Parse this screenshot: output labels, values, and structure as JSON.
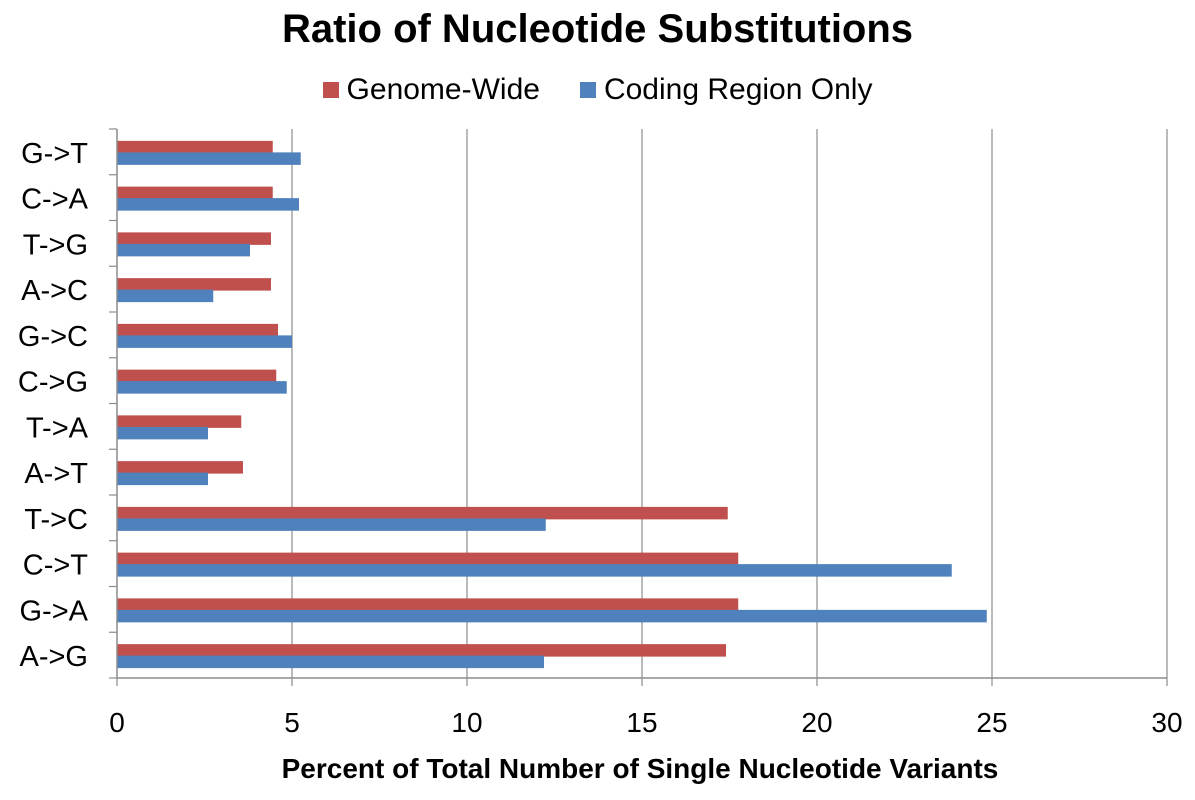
{
  "chart_data": {
    "type": "bar",
    "orientation": "horizontal",
    "title": "Ratio of Nucleotide Substitutions",
    "xlabel": "Percent of Total Number of Single Nucleotide Variants",
    "ylabel": "",
    "xlim": [
      0,
      30
    ],
    "xticks": [
      0,
      5,
      10,
      15,
      20,
      25,
      30
    ],
    "grid": "vertical",
    "legend_position": "top",
    "categories": [
      "G->T",
      "C->A",
      "T->G",
      "A->C",
      "G->C",
      "C->G",
      "T->A",
      "A->T",
      "T->C",
      "C->T",
      "G->A",
      "A->G"
    ],
    "series": [
      {
        "name": "Genome-Wide",
        "color": "#c0504d",
        "values": [
          4.45,
          4.45,
          4.4,
          4.4,
          4.6,
          4.55,
          3.55,
          3.6,
          17.45,
          17.75,
          17.75,
          17.4
        ]
      },
      {
        "name": "Coding Region Only",
        "color": "#4f81bd",
        "values": [
          5.25,
          5.2,
          3.8,
          2.75,
          5.0,
          4.85,
          2.6,
          2.6,
          12.25,
          23.85,
          24.85,
          12.2
        ]
      }
    ]
  }
}
